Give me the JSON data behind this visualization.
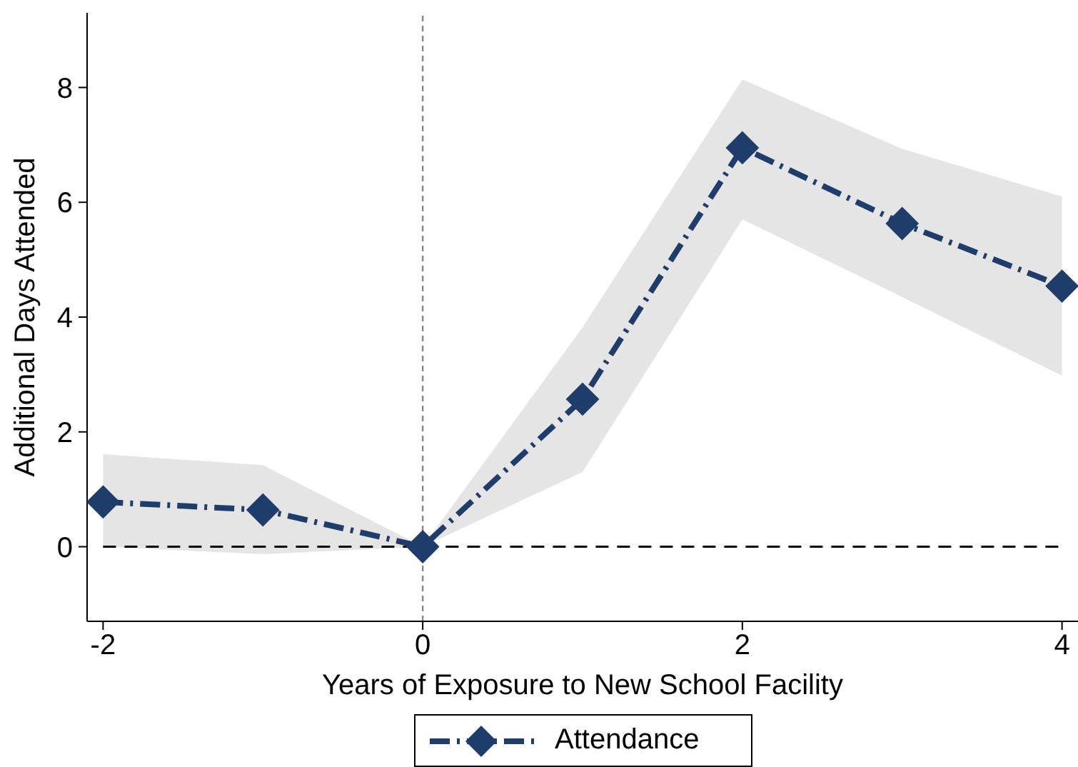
{
  "chart_data": {
    "type": "line",
    "xlabel": "Years of Exposure to New School Facility",
    "ylabel": "Additional Days Attended",
    "x": [
      -2,
      -1,
      0,
      1,
      2,
      3,
      4
    ],
    "series": [
      {
        "name": "Attendance",
        "color": "#1f3d6b",
        "values": [
          0.78,
          0.64,
          0,
          2.57,
          6.95,
          5.63,
          4.54
        ],
        "lower": [
          0,
          -0.13,
          0,
          1.3,
          5.7,
          4.35,
          2.98
        ],
        "upper": [
          1.61,
          1.42,
          0,
          3.82,
          8.14,
          6.93,
          6.1
        ]
      }
    ],
    "xlim": [
      -2.1,
      4.1
    ],
    "xticks": [
      -2,
      0,
      2,
      4
    ],
    "ylim": [
      -1.3,
      9.3
    ],
    "yticks": [
      0,
      2,
      4,
      6,
      8
    ],
    "ref_lines": [
      {
        "axis": "y",
        "value": 0,
        "color": "#000000",
        "line_style": "dashed"
      },
      {
        "axis": "x",
        "value": 0,
        "color": "#888888",
        "line_style": "dashed"
      }
    ],
    "legend": "bottom",
    "marker": "diamond",
    "line_style": "dashed"
  }
}
